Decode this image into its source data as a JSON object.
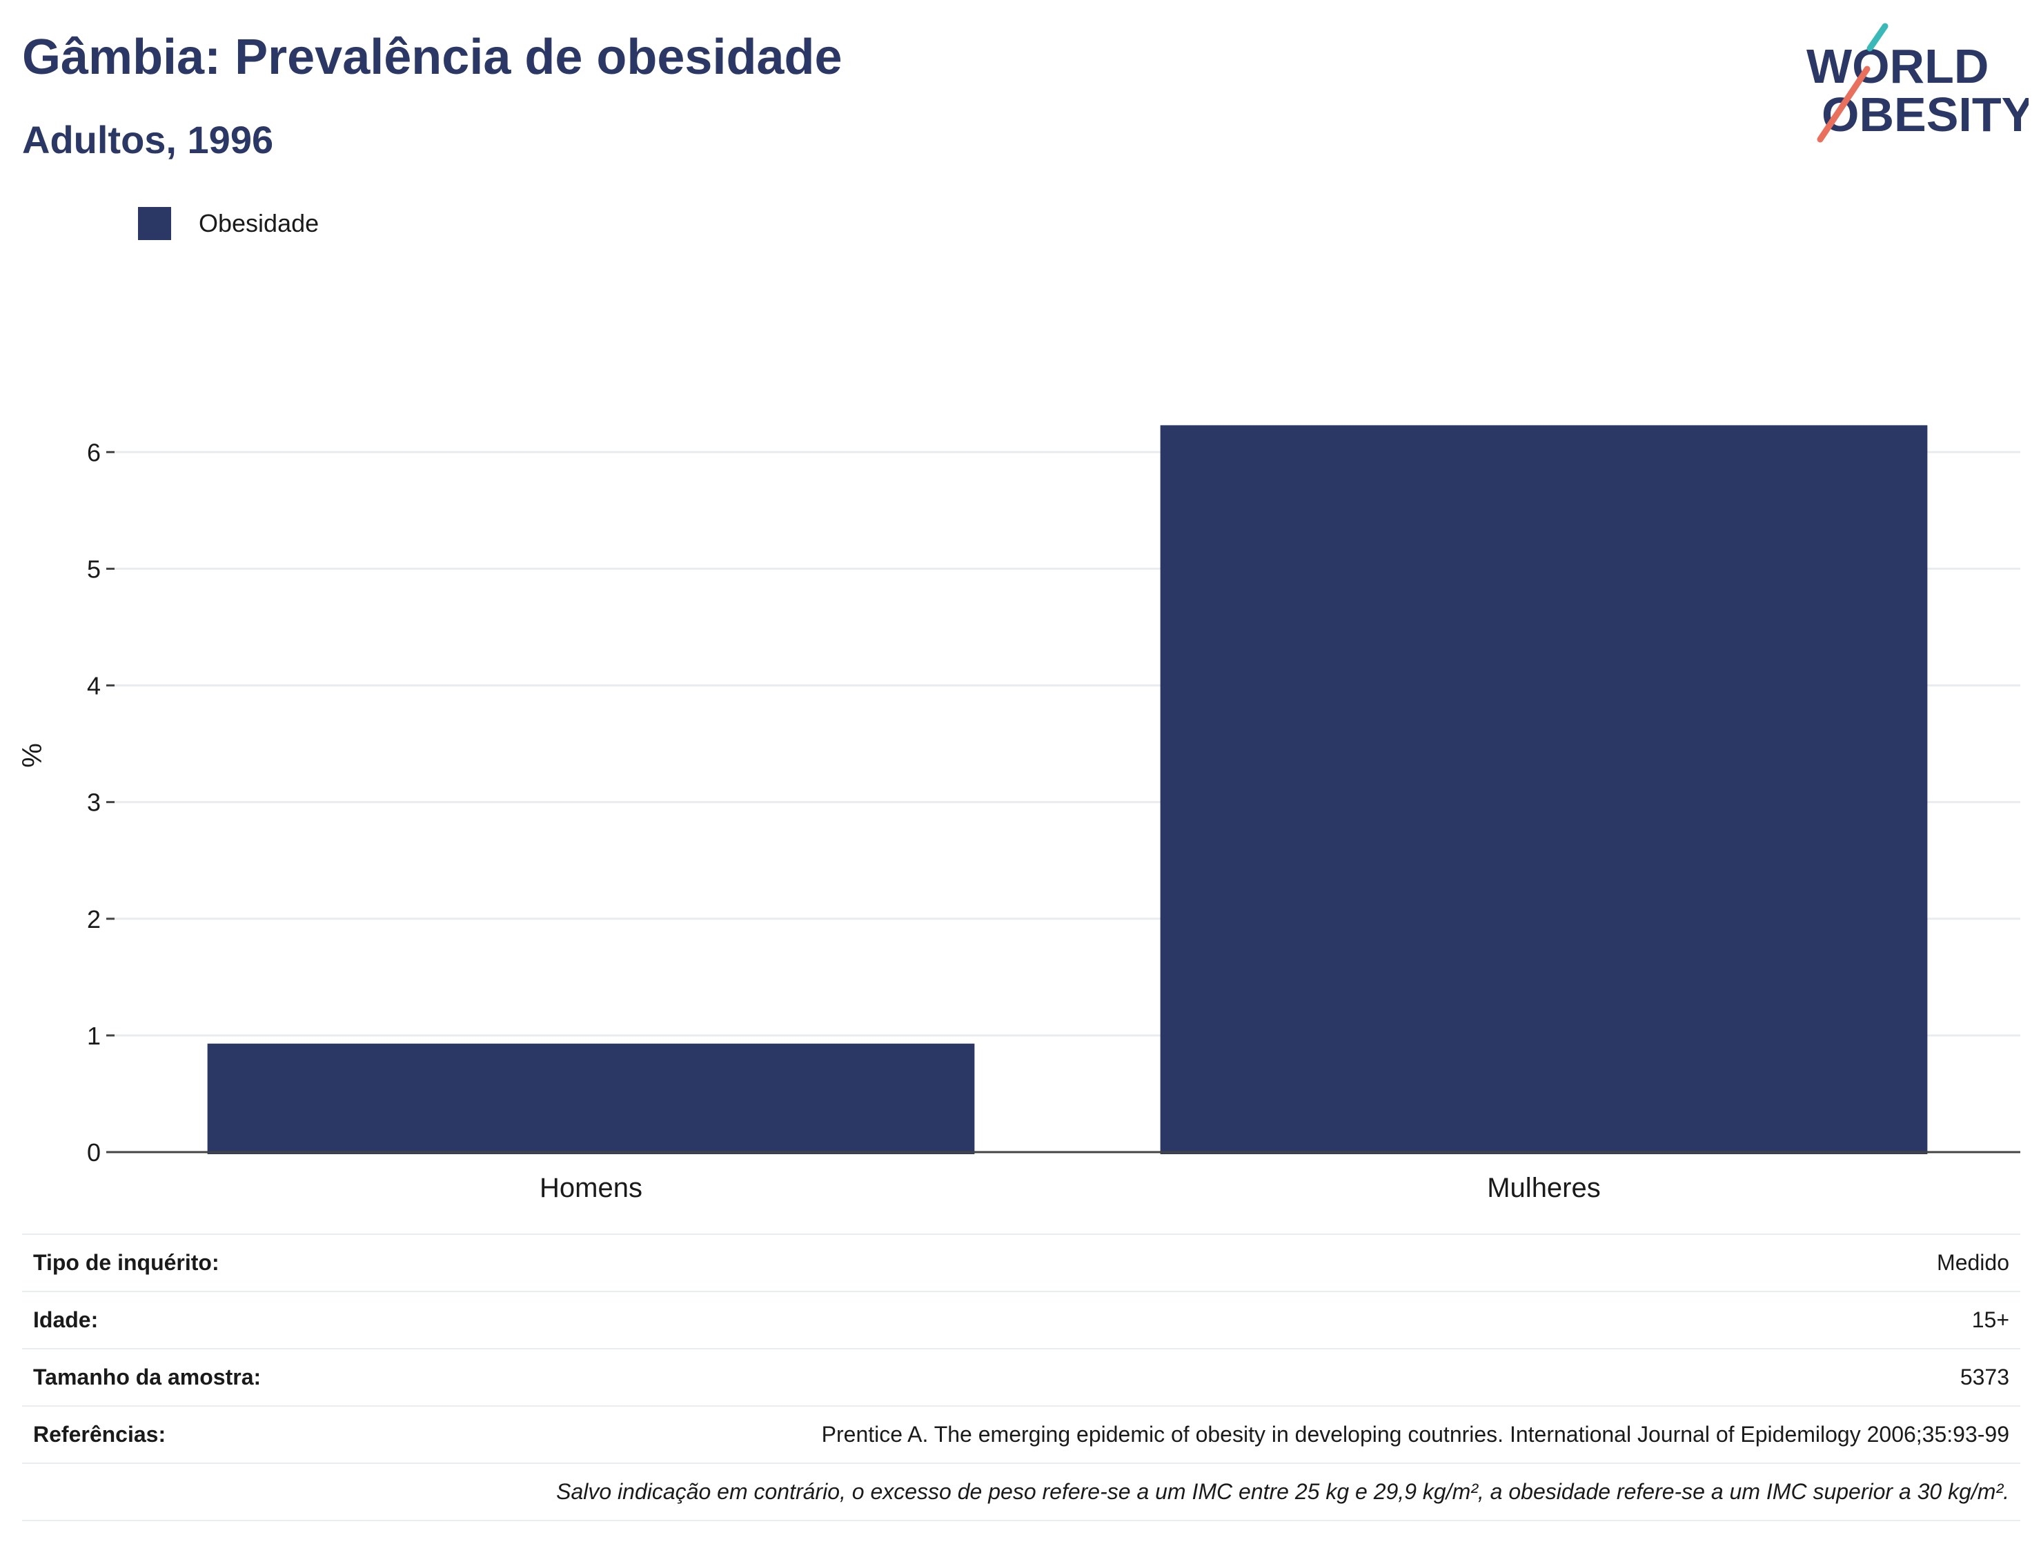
{
  "header": {
    "title": "Gâmbia: Prevalência de obesidade",
    "subtitle": "Adultos, 1996"
  },
  "logo": {
    "line1": "WORLD",
    "line2": "OBESITY"
  },
  "legend": {
    "label": "Obesidade",
    "color": "#2b3764"
  },
  "chart_data": {
    "type": "bar",
    "categories": [
      "Homens",
      "Mulheres"
    ],
    "series": [
      {
        "name": "Obesidade",
        "values": [
          0.93,
          6.23
        ],
        "color": "#2b3764"
      }
    ],
    "ylabel": "%",
    "ylim": [
      0,
      6.8
    ],
    "yticks": [
      0,
      1,
      2,
      3,
      4,
      5,
      6
    ],
    "grid": true,
    "legend_position": "top-left"
  },
  "info": {
    "rows": [
      {
        "key": "Tipo de inquérito:",
        "value": "Medido"
      },
      {
        "key": "Idade:",
        "value": "15+"
      },
      {
        "key": "Tamanho da amostra:",
        "value": "5373"
      },
      {
        "key": "Referências:",
        "value": "Prentice A. The emerging epidemic of obesity in developing coutnries. International Journal of Epidemilogy 2006;35:93-99"
      }
    ],
    "note": "Salvo indicação em contrário, o excesso de peso refere-se a um IMC entre 25 kg e 29,9 kg/m², a obesidade refere-se a um IMC superior a 30 kg/m²."
  }
}
